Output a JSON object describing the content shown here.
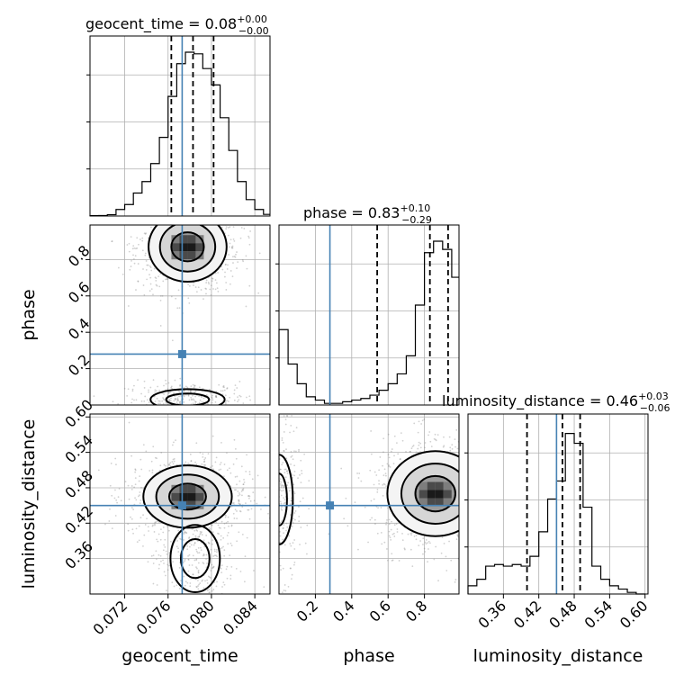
{
  "chart_data": {
    "type": "corner",
    "parameters": [
      "geocent_time",
      "phase",
      "luminosity_distance"
    ],
    "titles": [
      {
        "param": "geocent_time",
        "prefix": "geocent_time = ",
        "median": "0.08",
        "plus": "+0.00",
        "minus": "−0.00"
      },
      {
        "param": "phase",
        "prefix": "phase = ",
        "median": "0.83",
        "plus": "+0.10",
        "minus": "−0.29"
      },
      {
        "param": "luminosity_distance",
        "prefix": "luminosity_distance = ",
        "median": "0.46",
        "plus": "+0.03",
        "minus": "−0.06"
      }
    ],
    "axis_labels": {
      "geocent_time": "geocent_time",
      "phase": "phase",
      "luminosity_distance": "luminosity_distance"
    },
    "ranges": {
      "geocent_time": [
        0.0688,
        0.0854
      ],
      "phase": [
        0.0,
        0.99
      ],
      "luminosity_distance": [
        0.3,
        0.605
      ]
    },
    "ticks": {
      "geocent_time": [
        "0.072",
        "0.076",
        "0.080",
        "0.084"
      ],
      "phase": [
        "0.2",
        "0.4",
        "0.6",
        "0.8"
      ],
      "luminosity_distance": [
        "0.36",
        "0.42",
        "0.48",
        "0.54",
        "0.60"
      ]
    },
    "truths": {
      "geocent_time": 0.0773,
      "phase": 0.28,
      "luminosity_distance": 0.45
    },
    "quantile_lines": {
      "geocent_time": [
        0.0763,
        0.0783,
        0.0802
      ],
      "phase": [
        0.54,
        0.83,
        0.93
      ],
      "luminosity_distance": [
        0.4,
        0.46,
        0.49
      ]
    },
    "histograms": {
      "geocent_time": {
        "bins": [
          0.0688,
          0.0696,
          0.0704,
          0.0712,
          0.072,
          0.0728,
          0.0736,
          0.0744,
          0.0752,
          0.076,
          0.0768,
          0.0776,
          0.0784,
          0.0792,
          0.08,
          0.0808,
          0.0816,
          0.0824,
          0.0832,
          0.084,
          0.0848,
          0.0854
        ],
        "counts": [
          0.002,
          0.003,
          0.008,
          0.04,
          0.07,
          0.14,
          0.21,
          0.32,
          0.48,
          0.73,
          0.93,
          1.0,
          0.99,
          0.9,
          0.8,
          0.6,
          0.4,
          0.21,
          0.1,
          0.04,
          0.01
        ]
      },
      "phase": {
        "bins": [
          0.0,
          0.05,
          0.1,
          0.15,
          0.2,
          0.25,
          0.3,
          0.35,
          0.4,
          0.45,
          0.5,
          0.55,
          0.6,
          0.65,
          0.7,
          0.75,
          0.8,
          0.85,
          0.9,
          0.95,
          0.99
        ],
        "counts": [
          0.46,
          0.25,
          0.13,
          0.05,
          0.03,
          0.01,
          0.01,
          0.02,
          0.03,
          0.04,
          0.06,
          0.09,
          0.13,
          0.19,
          0.3,
          0.61,
          0.93,
          1.0,
          0.95,
          0.78
        ]
      },
      "luminosity_distance": {
        "bins": [
          0.3,
          0.315,
          0.33,
          0.345,
          0.36,
          0.375,
          0.39,
          0.405,
          0.42,
          0.435,
          0.45,
          0.465,
          0.48,
          0.495,
          0.51,
          0.525,
          0.54,
          0.555,
          0.57,
          0.585,
          0.6
        ],
        "counts": [
          0.05,
          0.09,
          0.17,
          0.18,
          0.17,
          0.18,
          0.17,
          0.23,
          0.38,
          0.58,
          0.69,
          0.98,
          0.92,
          0.53,
          0.17,
          0.09,
          0.05,
          0.03,
          0.01,
          0.0
        ]
      }
    },
    "density_peaks": [
      {
        "x": "geocent_time",
        "y": "phase",
        "peaks": [
          {
            "x": 0.0778,
            "y": 0.87,
            "sx": 0.0015,
            "sy": 0.08,
            "n": 1.0
          },
          {
            "x": 0.0778,
            "y": 0.03,
            "sx": 0.0018,
            "sy": 0.03,
            "n": 0.35
          }
        ]
      },
      {
        "x": "geocent_time",
        "y": "luminosity_distance",
        "peaks": [
          {
            "x": 0.0778,
            "y": 0.465,
            "sx": 0.0017,
            "sy": 0.022,
            "n": 1.0
          },
          {
            "x": 0.0785,
            "y": 0.36,
            "sx": 0.0012,
            "sy": 0.03,
            "n": 0.3
          }
        ]
      },
      {
        "x": "phase",
        "y": "luminosity_distance",
        "peaks": [
          {
            "x": 0.86,
            "y": 0.47,
            "sx": 0.11,
            "sy": 0.03,
            "n": 1.0
          },
          {
            "x": 0.0,
            "y": 0.46,
            "sx": 0.04,
            "sy": 0.04,
            "n": 0.4
          }
        ]
      }
    ],
    "contour_levels": [
      "0.5 (inner)",
      "1.0 (middle)",
      "1.5 (outer)"
    ]
  }
}
